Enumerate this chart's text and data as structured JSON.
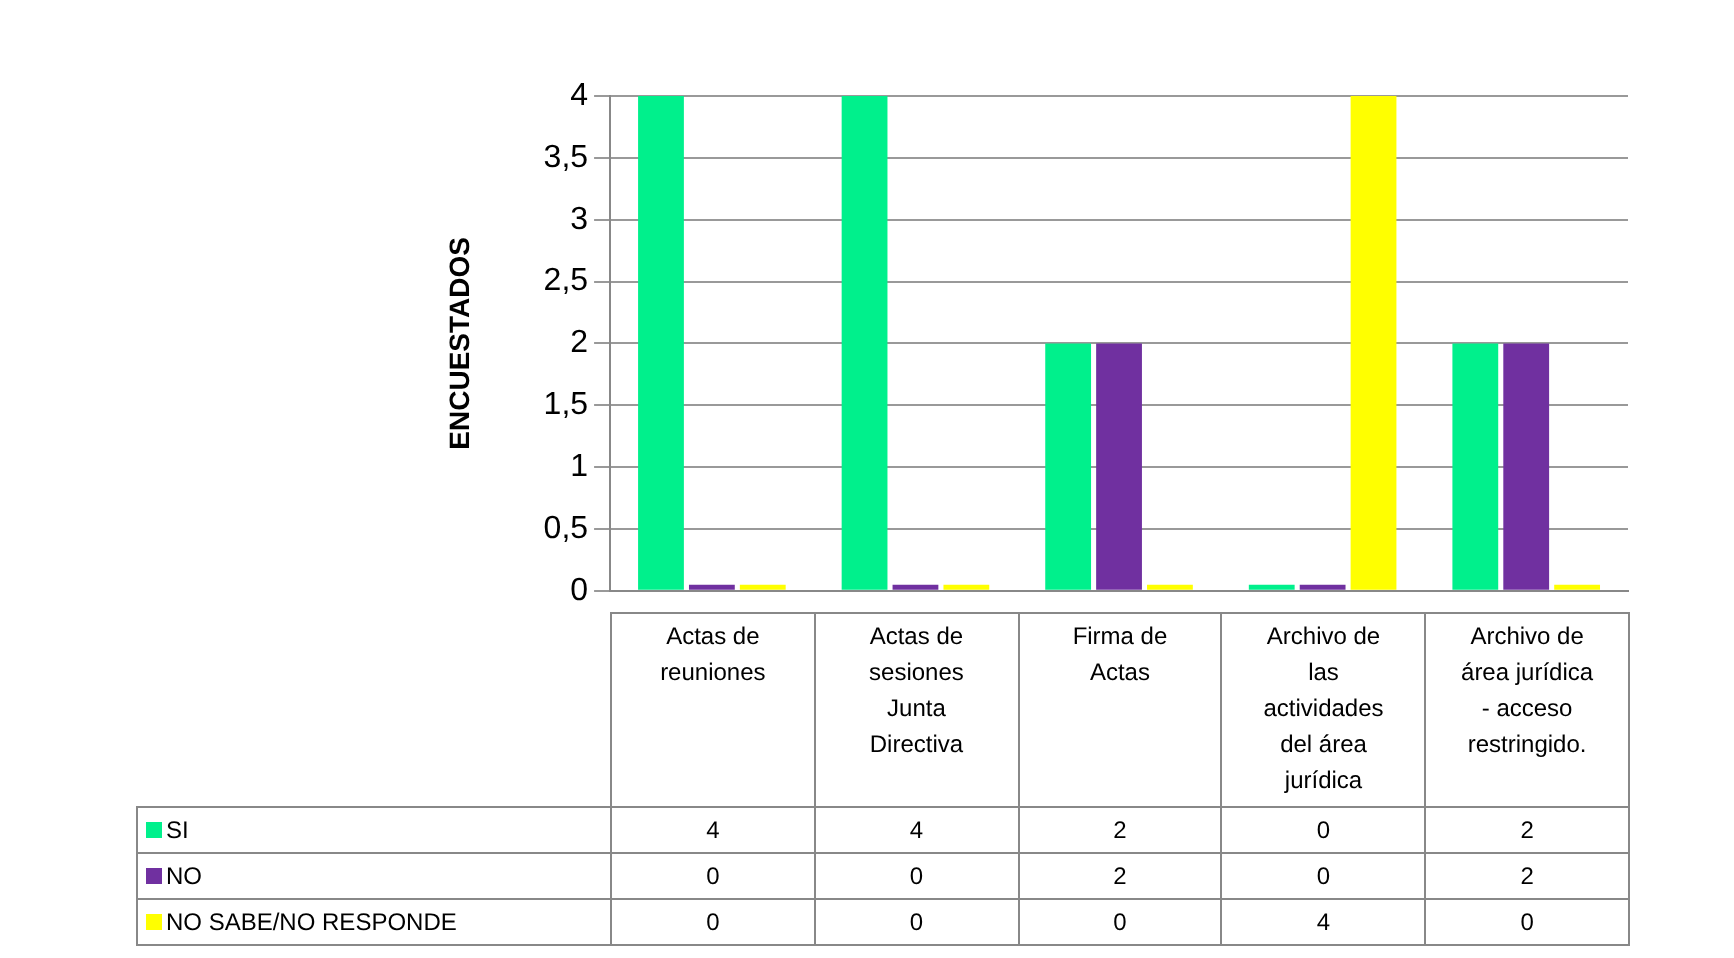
{
  "chart_data": {
    "type": "bar",
    "ylabel": "ENCUESTADOS",
    "categories": [
      "Actas de reuniones",
      "Actas de sesiones Junta Directiva",
      "Firma de Actas",
      "Archivo de las actividades del área jurídica",
      "Archivo de área jurídica - acceso restringido."
    ],
    "series": [
      {
        "name": "SI",
        "color": "#00f08c",
        "values": [
          4,
          4,
          2,
          0,
          2
        ]
      },
      {
        "name": "NO",
        "color": "#7030a0",
        "values": [
          0,
          0,
          2,
          0,
          2
        ]
      },
      {
        "name": "NO SABE/NO RESPONDE",
        "color": "#ffff00",
        "values": [
          0,
          0,
          0,
          4,
          0
        ]
      }
    ],
    "ylim": [
      0,
      4
    ],
    "yticks": [
      0,
      {
        "value": 0.5,
        "label": "0,5"
      },
      1,
      {
        "value": 1.5,
        "label": "1,5"
      },
      2,
      {
        "value": 2.5,
        "label": "2,5"
      },
      3,
      {
        "value": 3.5,
        "label": "3,5"
      },
      4
    ],
    "grid": "y",
    "legend": "bottom",
    "data_labels": true
  }
}
